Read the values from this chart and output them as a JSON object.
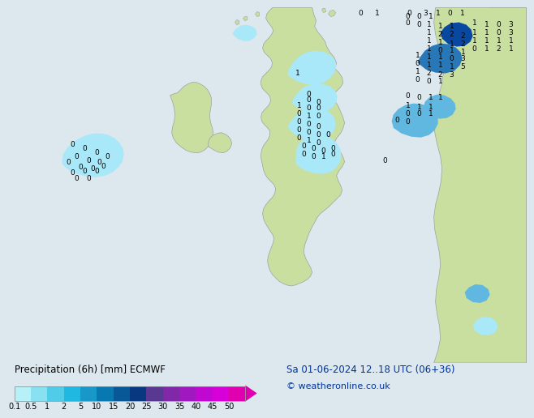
{
  "title_label": "Precipitation (6h) [mm] ECMWF",
  "date_label": "Sa 01-06-2024 12..18 UTC (06+36)",
  "copyright_label": "© weatheronline.co.uk",
  "colorbar_labels": [
    "0.1",
    "0.5",
    "1",
    "2",
    "5",
    "10",
    "15",
    "20",
    "25",
    "30",
    "35",
    "40",
    "45",
    "50"
  ],
  "colorbar_colors": [
    "#b8f0f8",
    "#88e0f0",
    "#50cce8",
    "#20b8e0",
    "#1898c8",
    "#0878b0",
    "#085898",
    "#083880",
    "#583890",
    "#8028a8",
    "#a018c0",
    "#c008d0",
    "#d800d8",
    "#e000b0"
  ],
  "arrow_color": "#e000b0",
  "ocean_color": "#dde8ee",
  "land_color": "#c8dfa0",
  "legend_bg": "#d8d8d8",
  "fig_bg": "#dde8ee",
  "label_fontsize": 8.5,
  "tick_fontsize": 7,
  "precip_light_blue": "#a8e8f8",
  "precip_mid_blue": "#60b8e0",
  "precip_dark_blue": "#2878b8",
  "precip_deeper_blue": "#0848a0"
}
